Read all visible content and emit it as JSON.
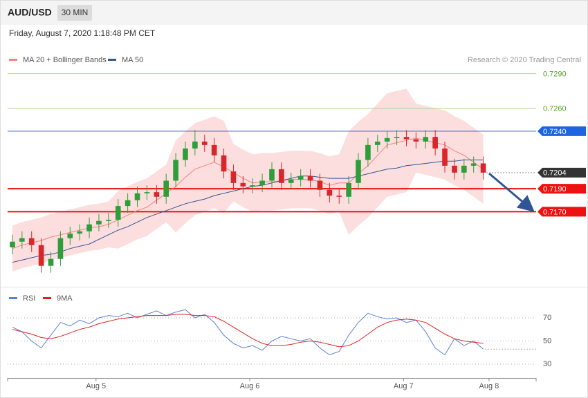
{
  "header": {
    "symbol": "AUD/USD",
    "timeframe": "30 MIN",
    "timestamp": "Friday, August 7, 2020 1:18:48 PM CET"
  },
  "chart_data": [
    {
      "type": "candlestick",
      "source": "Research © 2020 Trading Central",
      "up_color": "#2e9e3a",
      "down_color": "#d9262b",
      "xlim": [
        -0.5,
        54.5
      ],
      "ylim": [
        0.7106,
        0.733
      ],
      "open": [
        0.7139,
        0.7144,
        0.7147,
        0.7141,
        0.7123,
        0.7129,
        0.7147,
        0.7151,
        0.7153,
        0.7159,
        0.7162,
        0.7163,
        0.7175,
        0.718,
        0.7186,
        0.7187,
        0.7183,
        0.7197,
        0.7215,
        0.7225,
        0.7231,
        0.7228,
        0.7219,
        0.7205,
        0.7195,
        0.7192,
        0.7193,
        0.7197,
        0.7207,
        0.7195,
        0.7198,
        0.7201,
        0.7197,
        0.7189,
        0.7184,
        0.7183,
        0.7195,
        0.7215,
        0.7228,
        0.7231,
        0.7234,
        0.7235,
        0.7233,
        0.7231,
        0.7235,
        0.7225,
        0.721,
        0.7204,
        0.721,
        0.7212
      ],
      "high": [
        0.715,
        0.7153,
        0.7153,
        0.7147,
        0.7135,
        0.7153,
        0.7157,
        0.7159,
        0.7165,
        0.7168,
        0.7169,
        0.7181,
        0.7186,
        0.7192,
        0.7193,
        0.7193,
        0.7203,
        0.7221,
        0.7231,
        0.7241,
        0.7237,
        0.7234,
        0.7225,
        0.7211,
        0.7201,
        0.7199,
        0.7203,
        0.7213,
        0.7213,
        0.7204,
        0.7207,
        0.7207,
        0.7203,
        0.7195,
        0.719,
        0.7201,
        0.7221,
        0.7234,
        0.7237,
        0.724,
        0.7241,
        0.7241,
        0.7239,
        0.7241,
        0.7241,
        0.7231,
        0.7216,
        0.7216,
        0.7218,
        0.7218
      ],
      "low": [
        0.7133,
        0.7138,
        0.7135,
        0.7117,
        0.7117,
        0.7123,
        0.7141,
        0.7145,
        0.7147,
        0.7153,
        0.7156,
        0.7157,
        0.7169,
        0.7174,
        0.718,
        0.7177,
        0.7177,
        0.7191,
        0.7209,
        0.7219,
        0.7222,
        0.7213,
        0.7199,
        0.7189,
        0.7186,
        0.7186,
        0.7187,
        0.7191,
        0.7189,
        0.7189,
        0.7192,
        0.7191,
        0.7183,
        0.7178,
        0.7177,
        0.7177,
        0.7189,
        0.7209,
        0.7222,
        0.7225,
        0.7228,
        0.7227,
        0.7225,
        0.7225,
        0.7219,
        0.7204,
        0.7198,
        0.7198,
        0.7204,
        0.7198
      ],
      "close": [
        0.7144,
        0.7147,
        0.7141,
        0.7123,
        0.7129,
        0.7147,
        0.7151,
        0.7153,
        0.7159,
        0.7162,
        0.7163,
        0.7175,
        0.718,
        0.7186,
        0.7187,
        0.7183,
        0.7197,
        0.7215,
        0.7225,
        0.7231,
        0.7228,
        0.7219,
        0.7205,
        0.7195,
        0.7192,
        0.7193,
        0.7197,
        0.7207,
        0.7195,
        0.7198,
        0.7201,
        0.7197,
        0.7189,
        0.7184,
        0.7183,
        0.7195,
        0.7215,
        0.7228,
        0.7231,
        0.7234,
        0.7235,
        0.7233,
        0.7231,
        0.7235,
        0.7225,
        0.721,
        0.7204,
        0.721,
        0.7212,
        0.7204
      ],
      "series": [
        {
          "name": "MA 20 + Bollinger Bands",
          "color": "#f4827c",
          "band_color": "#fcdede",
          "values": [
            0.7138,
            0.7141,
            0.7143,
            0.7145,
            0.7148,
            0.715,
            0.7152,
            0.7154,
            0.7156,
            0.7157,
            0.7159,
            0.7163,
            0.7167,
            0.7171,
            0.7174,
            0.718,
            0.7186,
            0.7192,
            0.72,
            0.7207,
            0.721,
            0.7213,
            0.7209,
            0.7204,
            0.7199,
            0.7195,
            0.7196,
            0.7196,
            0.7197,
            0.7198,
            0.7198,
            0.7198,
            0.7196,
            0.7193,
            0.7195,
            0.7195,
            0.7203,
            0.721,
            0.7219,
            0.7228,
            0.723,
            0.7232,
            0.7234,
            0.7232,
            0.723,
            0.7228,
            0.7223,
            0.7219,
            0.7213,
            0.7207
          ],
          "upper": [
            0.7158,
            0.7161,
            0.7163,
            0.7165,
            0.7168,
            0.717,
            0.7172,
            0.7174,
            0.7176,
            0.7177,
            0.7179,
            0.7188,
            0.7192,
            0.7196,
            0.7199,
            0.7205,
            0.7211,
            0.7232,
            0.724,
            0.7247,
            0.725,
            0.7253,
            0.7249,
            0.7229,
            0.7224,
            0.722,
            0.7221,
            0.7221,
            0.7222,
            0.7223,
            0.7223,
            0.7223,
            0.7221,
            0.7218,
            0.722,
            0.724,
            0.7248,
            0.7255,
            0.7264,
            0.7273,
            0.7275,
            0.7277,
            0.7264,
            0.7262,
            0.726,
            0.7258,
            0.7253,
            0.7249,
            0.7243,
            0.7237
          ],
          "lower": [
            0.7118,
            0.7121,
            0.7123,
            0.7125,
            0.7128,
            0.713,
            0.7132,
            0.7134,
            0.7136,
            0.7137,
            0.7139,
            0.7138,
            0.7142,
            0.7146,
            0.7149,
            0.7155,
            0.7161,
            0.7152,
            0.716,
            0.7167,
            0.717,
            0.7173,
            0.7169,
            0.7179,
            0.7174,
            0.717,
            0.7171,
            0.7171,
            0.7172,
            0.7173,
            0.7173,
            0.7173,
            0.7171,
            0.7168,
            0.717,
            0.715,
            0.7158,
            0.7165,
            0.7174,
            0.7183,
            0.7185,
            0.7187,
            0.7204,
            0.7202,
            0.72,
            0.7198,
            0.7193,
            0.7189,
            0.7183,
            0.7177
          ]
        },
        {
          "name": "MA 50",
          "color": "#2f5597",
          "values": [
            0.7126,
            0.7128,
            0.713,
            0.7132,
            0.7133,
            0.7135,
            0.7138,
            0.714,
            0.7142,
            0.7146,
            0.715,
            0.7154,
            0.7157,
            0.7161,
            0.7165,
            0.7168,
            0.7171,
            0.7174,
            0.7177,
            0.7179,
            0.7181,
            0.7184,
            0.7186,
            0.7188,
            0.719,
            0.7192,
            0.7193,
            0.7195,
            0.7197,
            0.7199,
            0.7201,
            0.7201,
            0.72,
            0.7199,
            0.7199,
            0.7199,
            0.7201,
            0.7203,
            0.7205,
            0.7207,
            0.7208,
            0.721,
            0.7211,
            0.7212,
            0.7213,
            0.7214,
            0.7214,
            0.7215,
            0.7215,
            0.7215
          ]
        }
      ],
      "levels": [
        {
          "value": 0.729,
          "label": "0.7290",
          "color": "#5aa02c",
          "line_color": "#a9d68c",
          "box": false,
          "dotted": false,
          "width": 1
        },
        {
          "value": 0.726,
          "label": "0.7260",
          "color": "#5aa02c",
          "line_color": "#a9d68c",
          "box": false,
          "dotted": false,
          "width": 1
        },
        {
          "value": 0.724,
          "label": "0.7240",
          "color": "#1e64e0",
          "line_color": "#1e64e0",
          "box": true,
          "dotted": false,
          "width": 1
        },
        {
          "value": 0.7204,
          "label": "0.7204",
          "color": "#333333",
          "line_color": "#333333",
          "box": true,
          "dotted": true,
          "width": 1
        },
        {
          "value": 0.719,
          "label": "0.7190",
          "color": "#ee1111",
          "line_color": "#ee1111",
          "box": true,
          "dotted": false,
          "width": 2
        },
        {
          "value": 0.717,
          "label": "0.7170",
          "color": "#ee1111",
          "line_color": "#ee1111",
          "box": true,
          "dotted": false,
          "width": 2
        }
      ]
    },
    {
      "type": "line",
      "xlim": [
        -0.5,
        54.5
      ],
      "ylim": [
        19.3,
        83.7
      ],
      "yticks": [
        30,
        50,
        70
      ],
      "grid": true,
      "xticks": [
        {
          "value": 8.7,
          "label": "Aug 5"
        },
        {
          "value": 24.7,
          "label": "Aug 6"
        },
        {
          "value": 40.7,
          "label": "Aug 7"
        },
        {
          "value": 49.6,
          "label": "Aug 8"
        }
      ],
      "series": [
        {
          "name": "RSI",
          "color": "#5b7fd6",
          "values": [
            62,
            58,
            50,
            44,
            55,
            66,
            63,
            68,
            65,
            70,
            72,
            71,
            74,
            70,
            73,
            76,
            72,
            75,
            77,
            70,
            73,
            66,
            55,
            48,
            44,
            46,
            42,
            50,
            54,
            52,
            50,
            52,
            44,
            38,
            41,
            55,
            66,
            74,
            71,
            69,
            70,
            66,
            68,
            58,
            44,
            38,
            52,
            46,
            50,
            43
          ]
        },
        {
          "name": "9MA",
          "color": "#e02020",
          "values": [
            60,
            58,
            56,
            53,
            52,
            54,
            57,
            60,
            62,
            65,
            67,
            69,
            70,
            71,
            72,
            72,
            72,
            73,
            73,
            72,
            72,
            71,
            67,
            62,
            57,
            52,
            48,
            46,
            46,
            47,
            49,
            50,
            49,
            47,
            45,
            46,
            50,
            56,
            62,
            66,
            68,
            69,
            68,
            66,
            61,
            56,
            52,
            50,
            49,
            48
          ]
        }
      ]
    }
  ]
}
